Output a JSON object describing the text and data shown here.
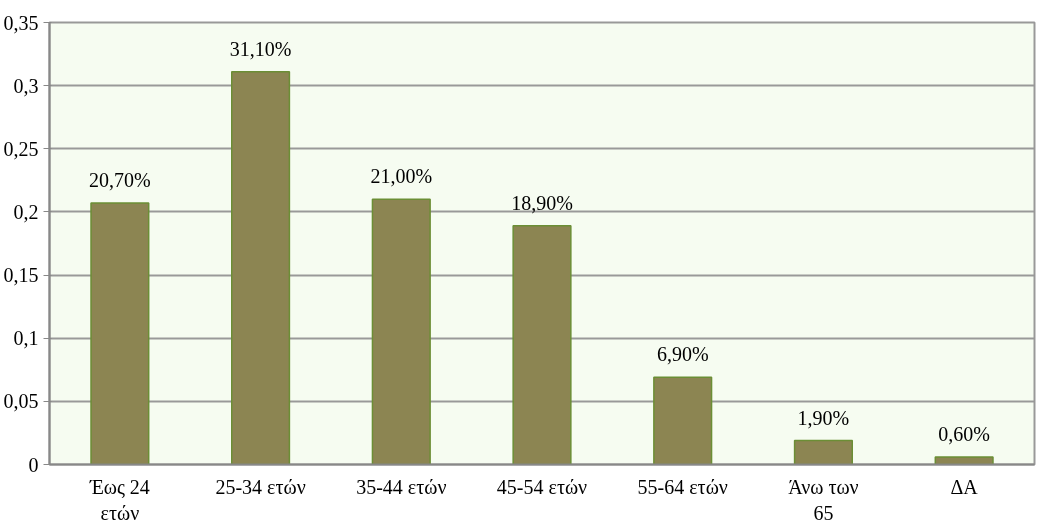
{
  "chart_data": {
    "type": "bar",
    "categories": [
      "Έως 24\nετών",
      "25-34 ετών",
      "35-44 ετών",
      "45-54 ετών",
      "55-64 ετών",
      "Άνω των\n65",
      "ΔΑ"
    ],
    "values": [
      0.207,
      0.311,
      0.21,
      0.189,
      0.069,
      0.019,
      0.006
    ],
    "value_labels": [
      "20,70%",
      "31,10%",
      "21,00%",
      "18,90%",
      "6,90%",
      "1,90%",
      "0,60%"
    ],
    "color": "#8c8552",
    "ylim": [
      0,
      0.35
    ],
    "yticks": [
      0,
      {
        "value": 0.05,
        "label": "0,05"
      },
      {
        "value": 0.1,
        "label": "0,1"
      },
      {
        "value": 0.15,
        "label": "0,15"
      },
      {
        "value": 0.2,
        "label": "0,2"
      },
      {
        "value": 0.25,
        "label": "0,25"
      },
      {
        "value": 0.3,
        "label": "0,3"
      },
      {
        "value": 0.35,
        "label": "0,35"
      }
    ],
    "grid": "y"
  }
}
